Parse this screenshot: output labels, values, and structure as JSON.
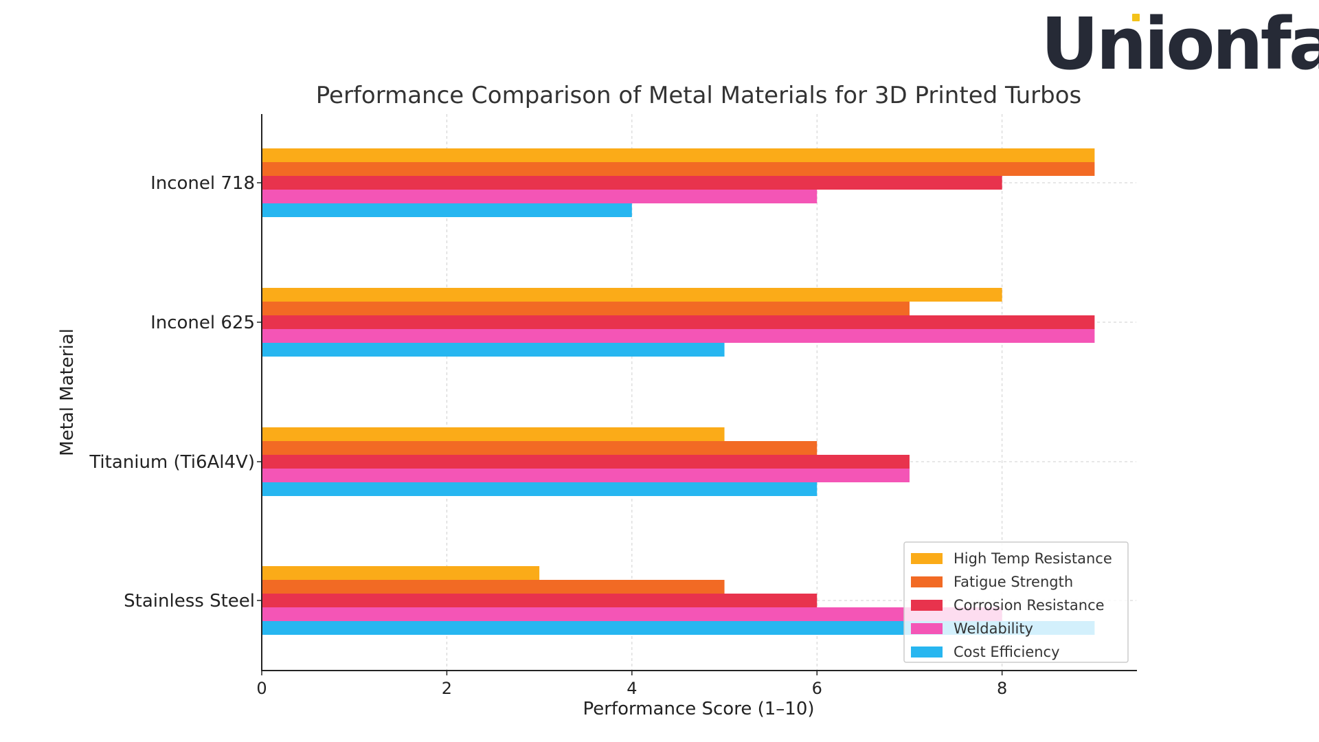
{
  "logo": {
    "text": "Unionfab",
    "accent_color": "#f3c21a",
    "text_color": "#262a36"
  },
  "chart_data": {
    "type": "bar",
    "orientation": "horizontal",
    "title": "Performance Comparison of Metal Materials for 3D Printed Turbos",
    "xlabel": "Performance Score (1–10)",
    "ylabel": "Metal Material",
    "xlim": [
      0,
      9.45
    ],
    "xticks": [
      0,
      2,
      4,
      6,
      8
    ],
    "grid": true,
    "legend_position": "bottom-right",
    "categories": [
      "Inconel 718",
      "Inconel 625",
      "Titanium (Ti6Al4V)",
      "Stainless Steel"
    ],
    "series": [
      {
        "name": "High Temp Resistance",
        "color": "#fbab18",
        "values": [
          9,
          8,
          5,
          3
        ]
      },
      {
        "name": "Fatigue Strength",
        "color": "#f26a24",
        "values": [
          9,
          7,
          6,
          5
        ]
      },
      {
        "name": "Corrosion Resistance",
        "color": "#e8334d",
        "values": [
          8,
          9,
          7,
          6
        ]
      },
      {
        "name": "Weldability",
        "color": "#f455b6",
        "values": [
          6,
          9,
          7,
          8
        ]
      },
      {
        "name": "Cost Efficiency",
        "color": "#27b6f0",
        "values": [
          4,
          5,
          6,
          9
        ]
      }
    ]
  }
}
